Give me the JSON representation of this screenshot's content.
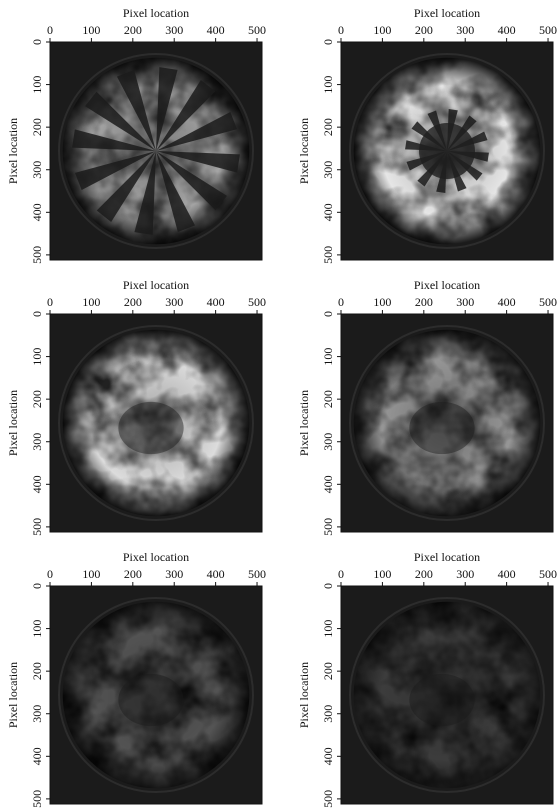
{
  "chart_data": [
    {
      "type": "image",
      "x_label": "Pixel location",
      "y_label": "Pixel location",
      "xlim": [
        0,
        512
      ],
      "ylim": [
        512,
        0
      ],
      "xticks": [
        0,
        100,
        200,
        300,
        400,
        500
      ],
      "yticks": [
        0,
        100,
        200,
        300,
        400,
        500
      ]
    },
    {
      "type": "image",
      "x_label": "Pixel location",
      "y_label": "Pixel location",
      "xlim": [
        0,
        512
      ],
      "ylim": [
        512,
        0
      ],
      "xticks": [
        0,
        100,
        200,
        300,
        400,
        500
      ],
      "yticks": [
        0,
        100,
        200,
        300,
        400,
        500
      ]
    },
    {
      "type": "image",
      "x_label": "Pixel location",
      "y_label": "Pixel location",
      "xlim": [
        0,
        512
      ],
      "ylim": [
        512,
        0
      ],
      "xticks": [
        0,
        100,
        200,
        300,
        400,
        500
      ],
      "yticks": [
        0,
        100,
        200,
        300,
        400,
        500
      ]
    },
    {
      "type": "image",
      "x_label": "Pixel location",
      "y_label": "Pixel location",
      "xlim": [
        0,
        512
      ],
      "ylim": [
        512,
        0
      ],
      "xticks": [
        0,
        100,
        200,
        300,
        400,
        500
      ],
      "yticks": [
        0,
        100,
        200,
        300,
        400,
        500
      ]
    },
    {
      "type": "image",
      "x_label": "Pixel location",
      "y_label": "Pixel location",
      "xlim": [
        0,
        512
      ],
      "ylim": [
        512,
        0
      ],
      "xticks": [
        0,
        100,
        200,
        300,
        400,
        500
      ],
      "yticks": [
        0,
        100,
        200,
        300,
        400,
        500
      ]
    },
    {
      "type": "image",
      "x_label": "Pixel location",
      "y_label": "Pixel location",
      "xlim": [
        0,
        512
      ],
      "ylim": [
        512,
        0
      ],
      "xticks": [
        0,
        100,
        200,
        300,
        400,
        500
      ],
      "yticks": [
        0,
        100,
        200,
        300,
        400,
        500
      ]
    }
  ]
}
